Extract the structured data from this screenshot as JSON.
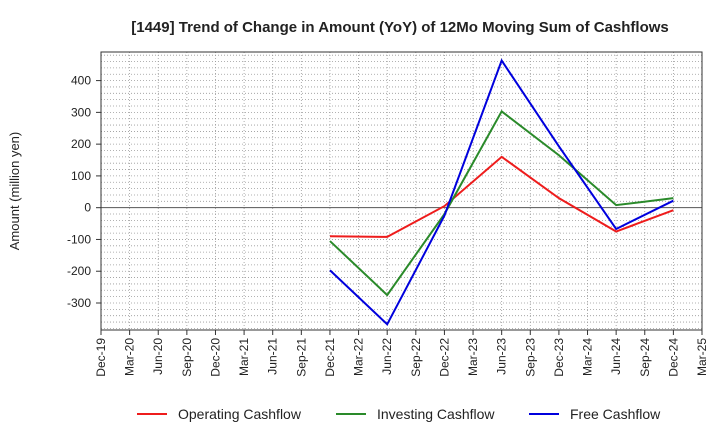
{
  "chart_data": {
    "type": "line",
    "title": "[1449]  Trend of Change in Amount (YoY) of 12Mo Moving Sum of Cashflows",
    "xlabel": "",
    "ylabel": "Amount (million yen)",
    "ylim": [
      -385,
      490
    ],
    "yticks": [
      -300,
      -200,
      -100,
      0,
      100,
      200,
      300,
      400
    ],
    "categories": [
      "Dec-19",
      "Mar-20",
      "Jun-20",
      "Sep-20",
      "Dec-20",
      "Mar-21",
      "Jun-21",
      "Sep-21",
      "Dec-21",
      "Mar-22",
      "Jun-22",
      "Sep-22",
      "Dec-22",
      "Mar-23",
      "Jun-23",
      "Sep-23",
      "Dec-23",
      "Mar-24",
      "Jun-24",
      "Sep-24",
      "Dec-24",
      "Mar-25"
    ],
    "grid": true,
    "legend_position": "bottom",
    "series": [
      {
        "name": "Operating Cashflow",
        "color": "#ee1c1c",
        "values": [
          null,
          null,
          null,
          null,
          null,
          null,
          null,
          null,
          -90,
          null,
          -92,
          null,
          5,
          null,
          160,
          null,
          30,
          null,
          -75,
          null,
          -8,
          null
        ]
      },
      {
        "name": "Investing Cashflow",
        "color": "#2a8a2a",
        "values": [
          null,
          null,
          null,
          null,
          null,
          null,
          null,
          null,
          -105,
          null,
          -275,
          null,
          -20,
          null,
          303,
          null,
          165,
          null,
          8,
          null,
          30,
          null
        ]
      },
      {
        "name": "Free Cashflow",
        "color": "#0000dd",
        "values": [
          null,
          null,
          null,
          null,
          null,
          null,
          null,
          null,
          -197,
          null,
          -367,
          null,
          -25,
          null,
          463,
          null,
          193,
          null,
          -67,
          null,
          22,
          null
        ]
      }
    ]
  }
}
